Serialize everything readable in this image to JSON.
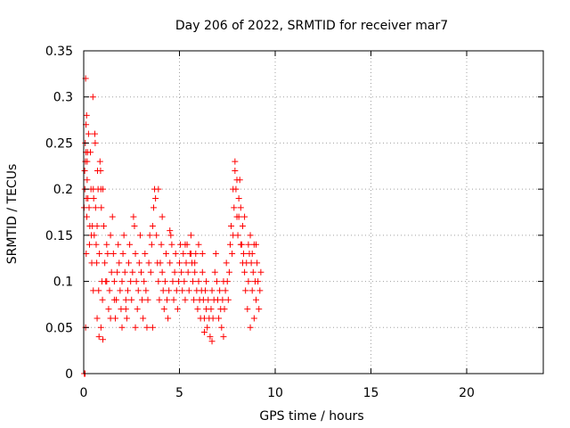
{
  "chart_data": {
    "type": "scatter",
    "title": "Day 206 of 2022, SRMTID for receiver mar7",
    "xlabel": "GPS time / hours",
    "ylabel": "SRMTID / TECUs",
    "xlim": [
      0,
      24
    ],
    "ylim": [
      0,
      0.35
    ],
    "xticks": [
      0,
      5,
      10,
      15,
      20
    ],
    "yticks": [
      0,
      0.05,
      0.1,
      0.15,
      0.2,
      0.25,
      0.3,
      0.35
    ],
    "xtick_labels": [
      "0",
      "5",
      "10",
      "15",
      "20"
    ],
    "ytick_labels": [
      "0",
      "0.05",
      "0.1",
      "0.15",
      "0.2",
      "0.25",
      "0.3",
      "0.35"
    ],
    "grid": true,
    "marker": "plus",
    "color": "#ff0000",
    "series": [
      {
        "points": [
          [
            0.02,
            0.18
          ],
          [
            0.05,
            0.22
          ],
          [
            0.08,
            0.25
          ],
          [
            0.1,
            0.32
          ],
          [
            0.12,
            0.27
          ],
          [
            0.15,
            0.28
          ],
          [
            0.18,
            0.21
          ],
          [
            0.2,
            0.24
          ],
          [
            0.22,
            0.19
          ],
          [
            0.25,
            0.26
          ],
          [
            0.06,
            0.2
          ],
          [
            0.09,
            0.23
          ],
          [
            0.12,
            0.24
          ],
          [
            0.14,
            0.19
          ],
          [
            0.16,
            0.17
          ],
          [
            0.18,
            0.23
          ],
          [
            0.03,
            0.0
          ],
          [
            0.07,
            0.0
          ],
          [
            0.1,
            0.05
          ],
          [
            0.13,
            0.13
          ],
          [
            0.28,
            0.18
          ],
          [
            0.3,
            0.14
          ],
          [
            0.32,
            0.16
          ],
          [
            0.35,
            0.24
          ],
          [
            0.38,
            0.2
          ],
          [
            0.4,
            0.15
          ],
          [
            0.42,
            0.12
          ],
          [
            0.45,
            0.16
          ],
          [
            0.48,
            0.3
          ],
          [
            0.5,
            0.2
          ],
          [
            0.52,
            0.19
          ],
          [
            0.55,
            0.15
          ],
          [
            0.58,
            0.26
          ],
          [
            0.6,
            0.25
          ],
          [
            0.62,
            0.18
          ],
          [
            0.65,
            0.14
          ],
          [
            0.68,
            0.12
          ],
          [
            0.7,
            0.16
          ],
          [
            0.72,
            0.22
          ],
          [
            0.75,
            0.2
          ],
          [
            0.78,
            0.09
          ],
          [
            0.8,
            0.04
          ],
          [
            0.82,
            0.13
          ],
          [
            0.85,
            0.23
          ],
          [
            0.88,
            0.22
          ],
          [
            0.9,
            0.2
          ],
          [
            0.92,
            0.18
          ],
          [
            0.95,
            0.1
          ],
          [
            0.98,
            0.08
          ],
          [
            1.0,
            0.2
          ],
          [
            1.05,
            0.16
          ],
          [
            1.1,
            0.12
          ],
          [
            1.15,
            0.1
          ],
          [
            1.2,
            0.14
          ],
          [
            1.25,
            0.13
          ],
          [
            1.3,
            0.07
          ],
          [
            1.35,
            0.09
          ],
          [
            1.4,
            0.15
          ],
          [
            1.45,
            0.11
          ],
          [
            1.5,
            0.17
          ],
          [
            1.55,
            0.13
          ],
          [
            1.6,
            0.1
          ],
          [
            1.65,
            0.06
          ],
          [
            1.7,
            0.08
          ],
          [
            1.75,
            0.11
          ],
          [
            1.8,
            0.14
          ],
          [
            1.85,
            0.12
          ],
          [
            1.9,
            0.09
          ],
          [
            1.95,
            0.07
          ],
          [
            2.0,
            0.1
          ],
          [
            2.05,
            0.13
          ],
          [
            2.1,
            0.15
          ],
          [
            2.15,
            0.11
          ],
          [
            2.2,
            0.08
          ],
          [
            2.25,
            0.06
          ],
          [
            2.3,
            0.09
          ],
          [
            2.35,
            0.12
          ],
          [
            2.4,
            0.14
          ],
          [
            2.45,
            0.1
          ],
          [
            2.5,
            0.08
          ],
          [
            2.55,
            0.11
          ],
          [
            2.6,
            0.17
          ],
          [
            2.65,
            0.16
          ],
          [
            2.7,
            0.13
          ],
          [
            2.75,
            0.1
          ],
          [
            2.8,
            0.07
          ],
          [
            2.85,
            0.09
          ],
          [
            2.9,
            0.12
          ],
          [
            2.95,
            0.15
          ],
          [
            3.0,
            0.11
          ],
          [
            3.05,
            0.08
          ],
          [
            3.1,
            0.06
          ],
          [
            3.15,
            0.1
          ],
          [
            3.2,
            0.13
          ],
          [
            3.25,
            0.09
          ],
          [
            3.3,
            0.05
          ],
          [
            3.35,
            0.08
          ],
          [
            3.4,
            0.12
          ],
          [
            3.45,
            0.15
          ],
          [
            3.5,
            0.11
          ],
          [
            3.55,
            0.14
          ],
          [
            3.6,
            0.16
          ],
          [
            3.65,
            0.18
          ],
          [
            3.7,
            0.2
          ],
          [
            3.75,
            0.19
          ],
          [
            3.8,
            0.15
          ],
          [
            3.85,
            0.12
          ],
          [
            3.9,
            0.1
          ],
          [
            3.95,
            0.08
          ],
          [
            4.0,
            0.12
          ],
          [
            4.05,
            0.14
          ],
          [
            4.1,
            0.11
          ],
          [
            4.15,
            0.09
          ],
          [
            4.2,
            0.07
          ],
          [
            4.25,
            0.1
          ],
          [
            4.3,
            0.13
          ],
          [
            4.35,
            0.08
          ],
          [
            4.4,
            0.06
          ],
          [
            4.45,
            0.09
          ],
          [
            4.5,
            0.12
          ],
          [
            4.55,
            0.15
          ],
          [
            4.6,
            0.14
          ],
          [
            4.65,
            0.1
          ],
          [
            4.7,
            0.08
          ],
          [
            4.75,
            0.11
          ],
          [
            4.8,
            0.13
          ],
          [
            4.85,
            0.09
          ],
          [
            4.9,
            0.07
          ],
          [
            4.95,
            0.1
          ],
          [
            5.0,
            0.12
          ],
          [
            5.05,
            0.14
          ],
          [
            5.1,
            0.11
          ],
          [
            5.15,
            0.09
          ],
          [
            5.2,
            0.13
          ],
          [
            5.25,
            0.1
          ],
          [
            5.3,
            0.08
          ],
          [
            5.35,
            0.12
          ],
          [
            5.4,
            0.14
          ],
          [
            5.45,
            0.11
          ],
          [
            5.5,
            0.09
          ],
          [
            5.55,
            0.13
          ],
          [
            5.6,
            0.15
          ],
          [
            5.65,
            0.12
          ],
          [
            5.7,
            0.1
          ],
          [
            5.75,
            0.08
          ],
          [
            5.8,
            0.11
          ],
          [
            5.85,
            0.13
          ],
          [
            5.9,
            0.09
          ],
          [
            5.95,
            0.07
          ],
          [
            6.0,
            0.1
          ],
          [
            6.05,
            0.08
          ],
          [
            6.1,
            0.06
          ],
          [
            6.15,
            0.09
          ],
          [
            6.2,
            0.11
          ],
          [
            6.25,
            0.08
          ],
          [
            6.3,
            0.06
          ],
          [
            6.35,
            0.09
          ],
          [
            6.4,
            0.07
          ],
          [
            6.45,
            0.05
          ],
          [
            6.5,
            0.08
          ],
          [
            6.55,
            0.06
          ],
          [
            6.6,
            0.04
          ],
          [
            6.65,
            0.07
          ],
          [
            6.7,
            0.09
          ],
          [
            6.75,
            0.06
          ],
          [
            6.8,
            0.08
          ],
          [
            6.85,
            0.11
          ],
          [
            6.9,
            0.13
          ],
          [
            6.95,
            0.1
          ],
          [
            7.0,
            0.08
          ],
          [
            7.05,
            0.06
          ],
          [
            7.1,
            0.09
          ],
          [
            7.15,
            0.07
          ],
          [
            7.2,
            0.05
          ],
          [
            7.25,
            0.08
          ],
          [
            7.3,
            0.1
          ],
          [
            7.35,
            0.07
          ],
          [
            7.4,
            0.09
          ],
          [
            7.45,
            0.12
          ],
          [
            7.5,
            0.1
          ],
          [
            7.55,
            0.08
          ],
          [
            7.6,
            0.11
          ],
          [
            7.65,
            0.14
          ],
          [
            7.7,
            0.16
          ],
          [
            7.75,
            0.13
          ],
          [
            7.8,
            0.15
          ],
          [
            7.85,
            0.18
          ],
          [
            7.9,
            0.22
          ],
          [
            7.95,
            0.2
          ],
          [
            8.0,
            0.17
          ],
          [
            8.05,
            0.15
          ],
          [
            8.1,
            0.19
          ],
          [
            8.15,
            0.21
          ],
          [
            8.2,
            0.18
          ],
          [
            8.25,
            0.14
          ],
          [
            8.3,
            0.16
          ],
          [
            8.35,
            0.13
          ],
          [
            8.4,
            0.11
          ],
          [
            8.45,
            0.09
          ],
          [
            8.5,
            0.12
          ],
          [
            8.55,
            0.07
          ],
          [
            8.6,
            0.1
          ],
          [
            8.65,
            0.13
          ],
          [
            8.7,
            0.15
          ],
          [
            8.75,
            0.12
          ],
          [
            8.8,
            0.09
          ],
          [
            8.85,
            0.11
          ],
          [
            8.9,
            0.14
          ],
          [
            8.95,
            0.1
          ],
          [
            9.0,
            0.08
          ],
          [
            9.05,
            0.12
          ],
          [
            9.1,
            0.1
          ],
          [
            9.15,
            0.07
          ],
          [
            9.2,
            0.09
          ],
          [
            9.25,
            0.11
          ],
          [
            8.9,
            0.06
          ],
          [
            8.7,
            0.05
          ],
          [
            7.3,
            0.04
          ],
          [
            6.7,
            0.035
          ],
          [
            6.3,
            0.045
          ],
          [
            0.5,
            0.09
          ],
          [
            0.7,
            0.06
          ],
          [
            0.9,
            0.05
          ],
          [
            1.0,
            0.037
          ],
          [
            1.2,
            0.1
          ],
          [
            1.4,
            0.06
          ],
          [
            1.6,
            0.08
          ],
          [
            2.0,
            0.05
          ],
          [
            2.2,
            0.07
          ],
          [
            2.7,
            0.05
          ],
          [
            3.6,
            0.05
          ],
          [
            3.9,
            0.2
          ],
          [
            4.1,
            0.17
          ],
          [
            4.5,
            0.155
          ],
          [
            5.3,
            0.14
          ],
          [
            5.6,
            0.13
          ],
          [
            5.8,
            0.12
          ],
          [
            6.0,
            0.14
          ],
          [
            6.2,
            0.13
          ],
          [
            6.4,
            0.1
          ],
          [
            7.8,
            0.2
          ],
          [
            7.9,
            0.23
          ],
          [
            8.0,
            0.21
          ],
          [
            8.1,
            0.17
          ],
          [
            8.2,
            0.14
          ],
          [
            8.3,
            0.12
          ],
          [
            8.4,
            0.17
          ],
          [
            8.6,
            0.14
          ],
          [
            8.8,
            0.13
          ],
          [
            9.0,
            0.14
          ]
        ]
      }
    ]
  }
}
